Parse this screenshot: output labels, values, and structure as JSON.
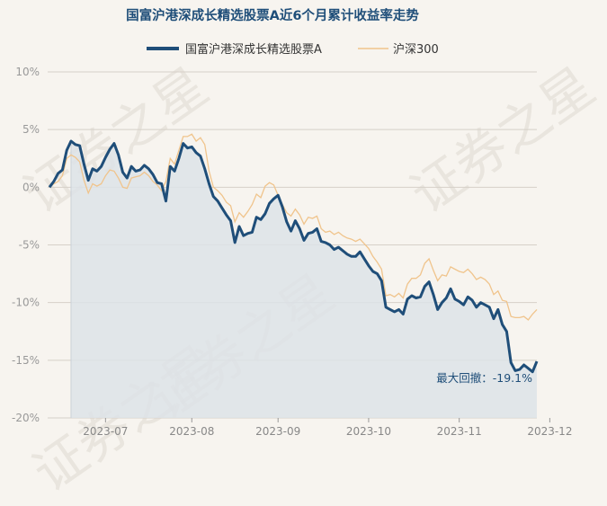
{
  "watermark_text": "证券之星",
  "chart_data": {
    "type": "line",
    "title": "国富沪港深成长精选股票A近6个月累计收益率走势",
    "xlabel": "",
    "ylabel": "",
    "ylim": [
      -20,
      10
    ],
    "yticks": [
      10,
      5,
      0,
      -5,
      -10,
      -15,
      -20
    ],
    "ytick_labels": [
      "10%",
      "5%",
      "0%",
      "-5%",
      "-10%",
      "-15%",
      "-20%"
    ],
    "xtick_labels": [
      "2023-07",
      "2023-08",
      "2023-09",
      "2023-10",
      "2023-11",
      "2023-12"
    ],
    "xtick_index": [
      13,
      33,
      53,
      74,
      95,
      116
    ],
    "grid": true,
    "legend_position": "top",
    "annotation": "最大回撤：-19.1%",
    "colors": {
      "fund": "#1f4e79",
      "index": "#f0c48c",
      "fill": "#dde3e8",
      "title": "#1f4e79"
    },
    "series": [
      {
        "name": "国富沪港深成长精选股票A",
        "values": [
          0,
          0.5,
          1.2,
          1.5,
          3.2,
          4.0,
          3.7,
          3.6,
          2.0,
          0.6,
          1.6,
          1.4,
          1.8,
          2.6,
          3.3,
          3.8,
          2.8,
          1.3,
          0.8,
          1.8,
          1.4,
          1.5,
          1.9,
          1.6,
          1.1,
          0.4,
          0.3,
          -1.2,
          1.8,
          1.4,
          2.5,
          3.8,
          3.4,
          3.5,
          3.0,
          2.7,
          1.6,
          0.3,
          -0.8,
          -1.2,
          -1.8,
          -2.4,
          -2.9,
          -4.8,
          -3.4,
          -4.2,
          -4.0,
          -3.9,
          -2.6,
          -2.8,
          -2.3,
          -1.4,
          -1.0,
          -0.7,
          -1.7,
          -3.0,
          -3.8,
          -2.9,
          -3.6,
          -4.6,
          -4.0,
          -3.9,
          -3.6,
          -4.7,
          -4.8,
          -5.0,
          -5.4,
          -5.2,
          -5.5,
          -5.8,
          -6.0,
          -6.0,
          -5.6,
          -6.2,
          -6.8,
          -7.3,
          -7.5,
          -8.1,
          -10.4,
          -10.6,
          -10.8,
          -10.6,
          -11.0,
          -9.7,
          -9.4,
          -9.6,
          -9.5,
          -8.6,
          -8.2,
          -9.3,
          -10.6,
          -10.0,
          -9.6,
          -8.8,
          -9.7,
          -9.9,
          -10.2,
          -9.5,
          -9.8,
          -10.4,
          -10.0,
          -10.2,
          -10.4,
          -11.4,
          -10.6,
          -11.9,
          -12.5,
          -15.2,
          -15.9,
          -15.8,
          -15.4,
          -15.7,
          -16.0,
          -15.1
        ]
      },
      {
        "name": "沪深300",
        "values": [
          0,
          0.3,
          0.5,
          1.0,
          2.5,
          2.8,
          2.6,
          2.2,
          0.6,
          -0.5,
          0.3,
          0.1,
          0.3,
          1.0,
          1.5,
          1.4,
          0.8,
          0.0,
          -0.1,
          0.8,
          0.9,
          1.0,
          1.3,
          1.0,
          0.5,
          0.2,
          -0.3,
          0.5,
          2.5,
          2.0,
          3.2,
          4.4,
          4.4,
          4.6,
          4.0,
          4.3,
          3.7,
          1.4,
          0.0,
          -0.3,
          -0.7,
          -1.3,
          -1.6,
          -3.0,
          -2.2,
          -2.6,
          -2.1,
          -1.5,
          -0.6,
          -0.9,
          0.1,
          0.4,
          0.2,
          -0.7,
          -1.5,
          -2.2,
          -2.5,
          -1.9,
          -2.4,
          -3.2,
          -2.6,
          -2.7,
          -2.5,
          -3.6,
          -3.9,
          -3.8,
          -4.1,
          -3.9,
          -4.2,
          -4.4,
          -4.5,
          -4.7,
          -4.5,
          -4.9,
          -5.3,
          -6.0,
          -6.5,
          -7.1,
          -9.4,
          -9.3,
          -9.5,
          -9.2,
          -9.6,
          -8.4,
          -7.9,
          -7.9,
          -7.6,
          -6.6,
          -6.2,
          -7.2,
          -8.1,
          -7.6,
          -7.7,
          -6.9,
          -7.1,
          -7.3,
          -7.4,
          -7.1,
          -7.5,
          -8.0,
          -7.8,
          -8.0,
          -8.4,
          -9.3,
          -9.0,
          -9.8,
          -9.9,
          -11.2,
          -11.3,
          -11.3,
          -11.2,
          -11.5,
          -11.0,
          -10.6
        ]
      }
    ]
  }
}
